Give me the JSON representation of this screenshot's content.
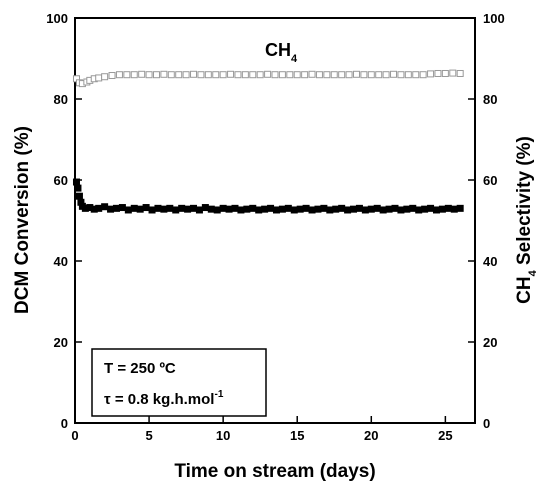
{
  "chart_data": {
    "type": "scatter",
    "xlabel": "Time on stream (days)",
    "ylabel_left": "DCM Conversion (%)",
    "ylabel_right": {
      "base": "CH",
      "sub": "4",
      "rest": " Selectivity (%)"
    },
    "xlim": [
      0,
      27
    ],
    "ylim_left": [
      0,
      100
    ],
    "ylim_right": [
      0,
      100
    ],
    "x_ticks": [
      0,
      5,
      10,
      15,
      20,
      25
    ],
    "y_ticks_left": [
      0,
      20,
      40,
      60,
      80,
      100
    ],
    "y_ticks_right": [
      0,
      20,
      40,
      60,
      80,
      100
    ],
    "grid": false,
    "annotation": {
      "base": "CH",
      "sub": "4"
    },
    "legend_box": {
      "position": "bottom-left",
      "line1": "T = 250 ºC",
      "line2_base": "τ = 0.8 kg.h.mol",
      "line2_sup": "-1"
    },
    "series": [
      {
        "marker": "open-square",
        "color": "#999999",
        "axis": "right",
        "x": [
          0.1,
          0.3,
          0.5,
          0.8,
          1.0,
          1.3,
          1.6,
          2.0,
          2.5,
          3.0,
          3.5,
          4.0,
          4.5,
          5.0,
          5.5,
          6.0,
          6.5,
          7.0,
          7.5,
          8.0,
          8.5,
          9.0,
          9.5,
          10.0,
          10.5,
          11.0,
          11.5,
          12.0,
          12.5,
          13.0,
          13.5,
          14.0,
          14.5,
          15.0,
          15.5,
          16.0,
          16.5,
          17.0,
          17.5,
          18.0,
          18.5,
          19.0,
          19.5,
          20.0,
          20.5,
          21.0,
          21.5,
          22.0,
          22.5,
          23.0,
          23.5,
          24.0,
          24.5,
          25.0,
          25.5,
          26.0
        ],
        "y": [
          85.0,
          84.0,
          83.8,
          84.2,
          84.6,
          85.0,
          85.2,
          85.5,
          85.8,
          86.0,
          86.0,
          86.0,
          86.1,
          86.0,
          86.0,
          86.1,
          86.0,
          86.0,
          86.0,
          86.1,
          86.0,
          86.0,
          86.0,
          86.0,
          86.1,
          86.0,
          86.0,
          86.0,
          86.0,
          86.1,
          86.0,
          86.0,
          86.0,
          86.0,
          86.0,
          86.1,
          86.0,
          86.0,
          86.0,
          86.0,
          86.0,
          86.1,
          86.0,
          86.0,
          86.0,
          86.0,
          86.1,
          86.0,
          86.0,
          86.0,
          86.0,
          86.2,
          86.3,
          86.3,
          86.4,
          86.3
        ]
      },
      {
        "marker": "filled-square",
        "color": "#000000",
        "axis": "left",
        "x": [
          0.1,
          0.2,
          0.3,
          0.4,
          0.5,
          0.7,
          1.0,
          1.3,
          1.6,
          2.0,
          2.4,
          2.8,
          3.2,
          3.6,
          4.0,
          4.4,
          4.8,
          5.2,
          5.6,
          6.0,
          6.4,
          6.8,
          7.2,
          7.6,
          8.0,
          8.4,
          8.8,
          9.2,
          9.6,
          10.0,
          10.4,
          10.8,
          11.2,
          11.6,
          12.0,
          12.4,
          12.8,
          13.2,
          13.6,
          14.0,
          14.4,
          14.8,
          15.2,
          15.6,
          16.0,
          16.4,
          16.8,
          17.2,
          17.6,
          18.0,
          18.4,
          18.8,
          19.2,
          19.6,
          20.0,
          20.4,
          20.8,
          21.2,
          21.6,
          22.0,
          22.4,
          22.8,
          23.2,
          23.6,
          24.0,
          24.4,
          24.8,
          25.2,
          25.6,
          26.0
        ],
        "y": [
          59.5,
          58.0,
          56.0,
          54.5,
          53.5,
          53.0,
          53.2,
          52.8,
          53.0,
          53.4,
          52.8,
          53.0,
          53.2,
          52.6,
          53.0,
          52.8,
          53.2,
          52.6,
          53.0,
          52.8,
          53.0,
          52.6,
          53.0,
          52.8,
          53.0,
          52.6,
          53.2,
          52.8,
          52.6,
          53.0,
          52.8,
          53.0,
          52.6,
          52.8,
          53.0,
          52.6,
          52.8,
          53.0,
          52.6,
          52.8,
          53.0,
          52.6,
          52.8,
          53.0,
          52.6,
          52.8,
          53.0,
          52.6,
          52.8,
          53.0,
          52.6,
          52.8,
          53.0,
          52.6,
          52.8,
          53.0,
          52.6,
          52.8,
          53.0,
          52.6,
          52.8,
          53.0,
          52.6,
          52.8,
          53.0,
          52.6,
          52.8,
          53.0,
          52.8,
          53.0
        ]
      }
    ]
  }
}
